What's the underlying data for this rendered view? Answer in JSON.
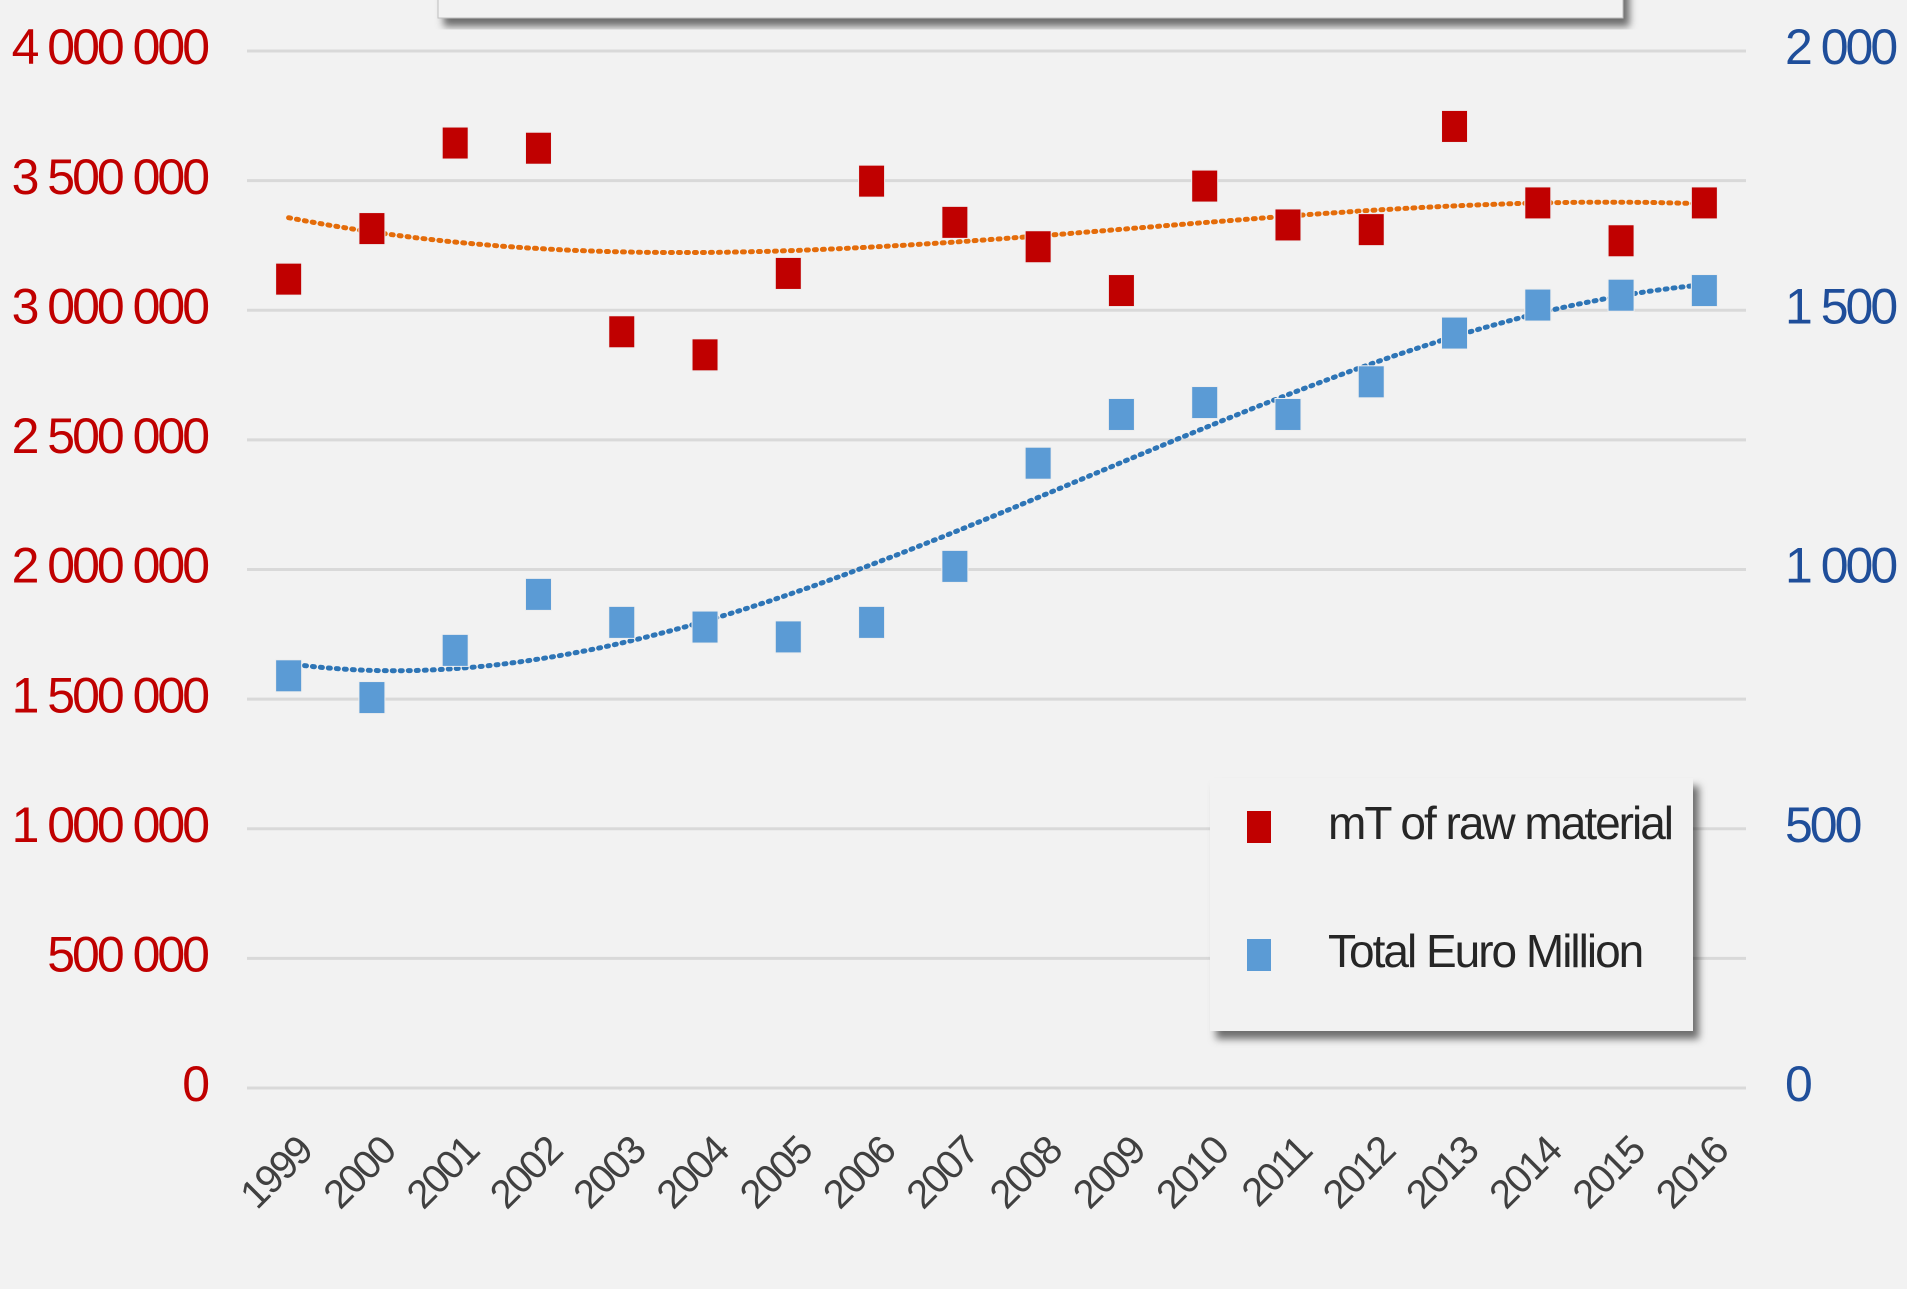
{
  "chart_data": {
    "type": "scatter",
    "categories": [
      "1999",
      "2000",
      "2001",
      "2002",
      "2003",
      "2004",
      "2005",
      "2006",
      "2007",
      "2008",
      "2009",
      "2010",
      "2011",
      "2012",
      "2013",
      "2014",
      "2015",
      "2016"
    ],
    "series": [
      {
        "name": "mT of raw material",
        "color": "#c00000",
        "values": [
          3120000,
          3315000,
          3645000,
          3625000,
          2917000,
          2828000,
          3142000,
          3498000,
          3339000,
          3245000,
          3076000,
          3479000,
          3329000,
          3311000,
          3709000,
          3414000,
          3268000,
          3414000
        ]
      },
      {
        "name": "Total Euro Million",
        "color": "#5b9bd5",
        "axis": "y2",
        "values": [
          795,
          753,
          844,
          952,
          898,
          889,
          870,
          898,
          1006,
          1205,
          1299,
          1322,
          1299,
          1362,
          1456,
          1510,
          1529,
          1538
        ]
      }
    ],
    "ylim": [
      0,
      4000000
    ],
    "yticks": [
      0,
      {
        "value": 500000,
        "label": "500 000"
      },
      {
        "value": 1000000,
        "label": "1 000 000"
      },
      {
        "value": 1500000,
        "label": "1 500 000"
      },
      {
        "value": 2000000,
        "label": "2 000 000"
      },
      {
        "value": 2500000,
        "label": "2 500 000"
      },
      {
        "value": 3000000,
        "label": "3 000 000"
      },
      {
        "value": 3500000,
        "label": "3 500 000"
      },
      {
        "value": 4000000,
        "label": "4 000 000"
      }
    ],
    "y2lim": [
      0,
      2000
    ],
    "y2ticks": [
      0,
      500,
      {
        "value": 1000,
        "label": "1 000"
      },
      {
        "value": 1500,
        "label": "1 500"
      },
      {
        "value": 2000,
        "label": "2 000"
      }
    ],
    "grid": true,
    "legend": "bottom-right"
  }
}
